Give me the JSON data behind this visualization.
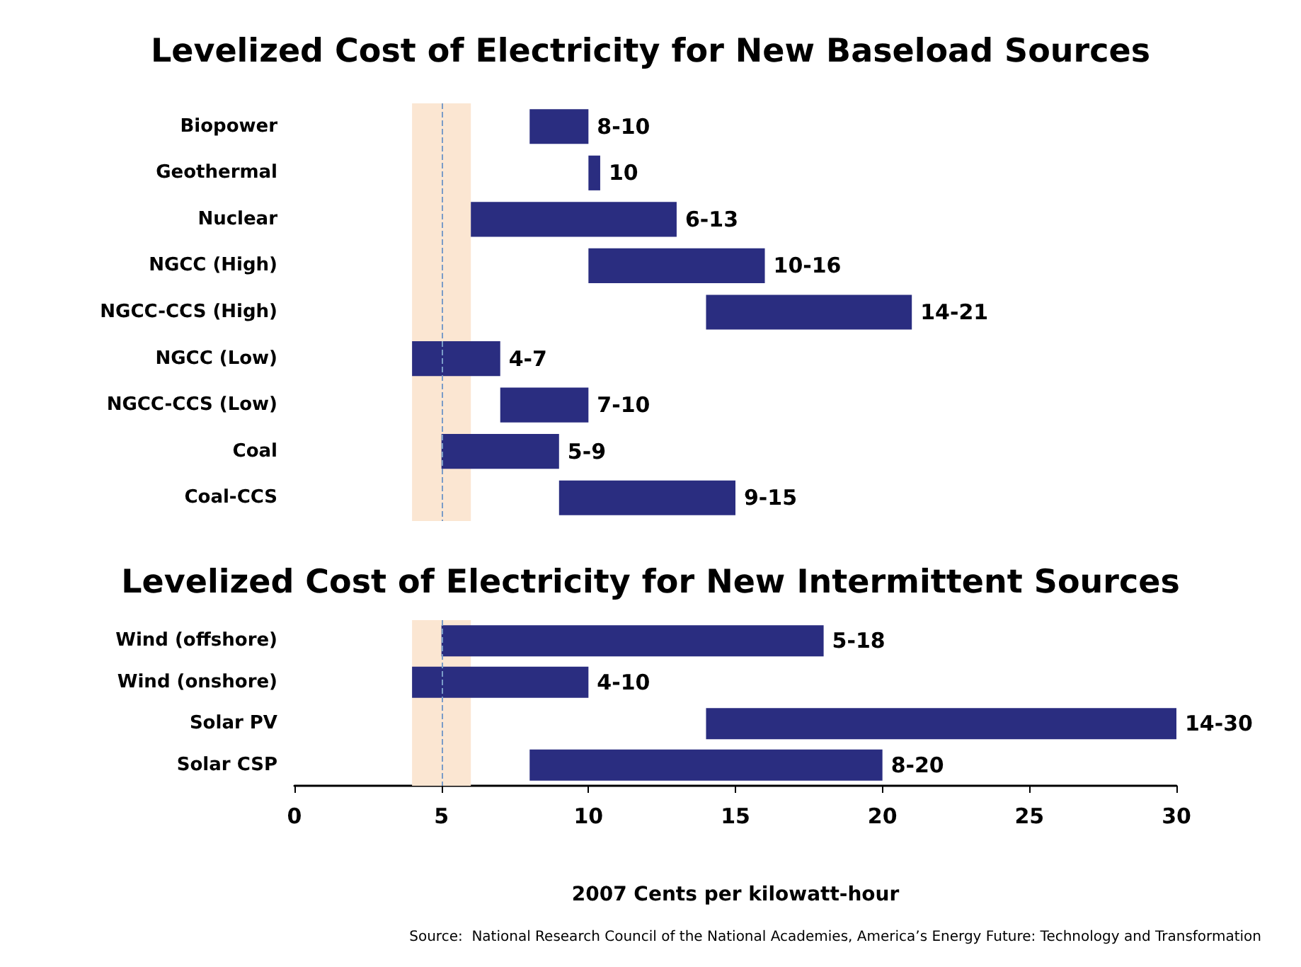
{
  "chart_data": [
    {
      "type": "bar",
      "orientation": "horizontal",
      "title": "Levelized Cost of Electricity for New Baseload Sources",
      "categories": [
        "Biopower",
        "Geothermal",
        "Nuclear",
        "NGCC (High)",
        "NGCC-CCS (High)",
        "NGCC (Low)",
        "NGCC-CCS (Low)",
        "Coal",
        "Coal-CCS"
      ],
      "base": [
        8,
        10,
        6,
        10,
        14,
        4,
        7,
        5,
        9
      ],
      "values": [
        2,
        0.4,
        7,
        6,
        7,
        3,
        3,
        4,
        6
      ],
      "value_labels": [
        "8-10",
        "10",
        "6-13",
        "10-16",
        "14-21",
        "4-7",
        "7-10",
        "5-9",
        "9-15"
      ],
      "color": "#2a2d80",
      "xlim": [
        0,
        30
      ],
      "xticks": [
        0,
        5,
        10,
        15,
        20,
        25,
        30
      ],
      "tick_labels": "y",
      "bands": [
        {
          "axis": "x",
          "from": 4,
          "to": 6,
          "color": "#fbe6d2"
        }
      ],
      "ref_lines": [
        {
          "axis": "x",
          "value": 5,
          "color": "#7a9cc8",
          "line_style": "dashed"
        }
      ]
    },
    {
      "type": "bar",
      "orientation": "horizontal",
      "title": "Levelized Cost of Electricity for New Intermittent Sources",
      "categories": [
        "Wind (offshore)",
        "Wind (onshore)",
        "Solar PV",
        "Solar CSP"
      ],
      "base": [
        5,
        4,
        14,
        8
      ],
      "values": [
        13,
        6,
        16,
        12
      ],
      "value_labels": [
        "5-18",
        "4-10",
        "14-30",
        "8-20"
      ],
      "color": "#2a2d80",
      "xlim": [
        0,
        30
      ],
      "xticks": [
        0,
        5,
        10,
        15,
        20,
        25,
        30
      ],
      "xlabel": "2007 Cents per kilowatt-hour",
      "annotations": [
        "Source:  National Research Council of the National Academies, America’s Energy Future: Technology and Transformation"
      ],
      "bands": [
        {
          "axis": "x",
          "from": 4,
          "to": 6,
          "color": "#fbe6d2"
        }
      ],
      "ref_lines": [
        {
          "axis": "x",
          "value": 5,
          "color": "#7a9cc8",
          "line_style": "dashed"
        }
      ]
    }
  ]
}
